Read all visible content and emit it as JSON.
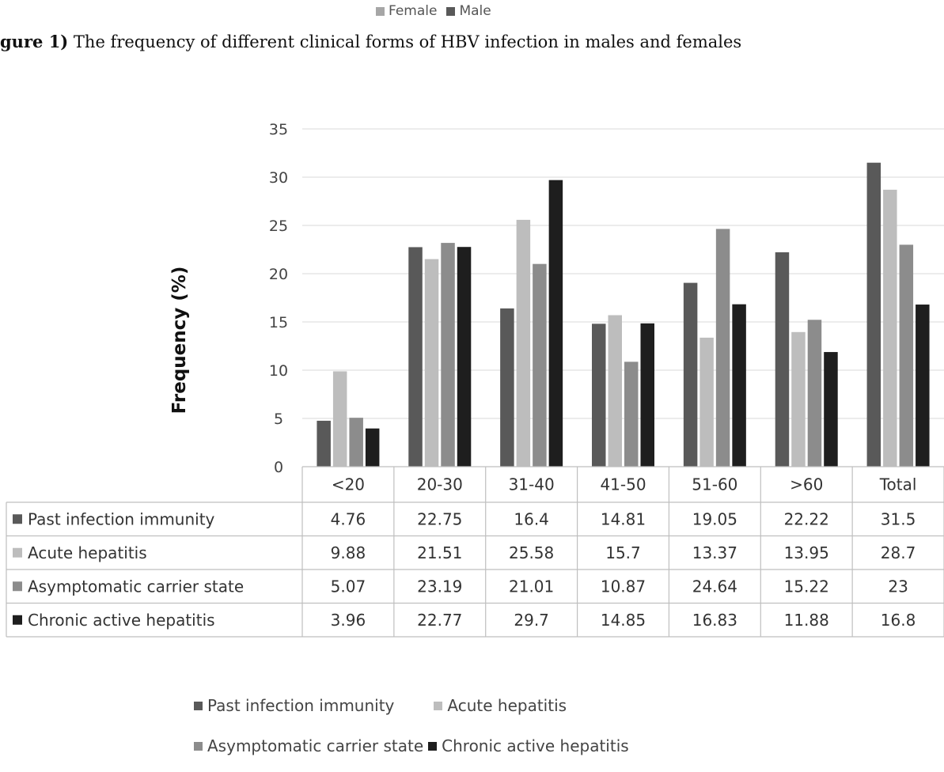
{
  "top_legend": [
    {
      "label": "Female",
      "color": "#a6a6a6"
    },
    {
      "label": "Male",
      "color": "#595959"
    }
  ],
  "caption": {
    "bold": "gure 1)",
    "text": " The frequency of different clinical forms of HBV infection in males and females"
  },
  "chart_data": {
    "type": "bar",
    "ylabel": "Frequency (%)",
    "ylim": [
      0,
      35
    ],
    "yticks": [
      0,
      5,
      10,
      15,
      20,
      25,
      30,
      35
    ],
    "grid": true,
    "categories": [
      "<20",
      "20-30",
      "31-40",
      "41-50",
      "51-60",
      ">60",
      "Total"
    ],
    "series": [
      {
        "name": "Past infection immunity",
        "color": "#595959",
        "values": [
          4.76,
          22.75,
          16.4,
          14.81,
          19.05,
          22.22,
          31.5
        ],
        "labels": [
          "4.76",
          "22.75",
          "16.4",
          "14.81",
          "19.05",
          "22.22",
          "31.5"
        ]
      },
      {
        "name": "Acute hepatitis",
        "color": "#bdbdbd",
        "values": [
          9.88,
          21.51,
          25.58,
          15.7,
          13.37,
          13.95,
          28.7
        ],
        "labels": [
          "9.88",
          "21.51",
          "25.58",
          "15.7",
          "13.37",
          "13.95",
          "28.7"
        ]
      },
      {
        "name": "Asymptomatic carrier state",
        "color": "#8c8c8c",
        "values": [
          5.07,
          23.19,
          21.01,
          10.87,
          24.64,
          15.22,
          23
        ],
        "labels": [
          "5.07",
          "23.19",
          "21.01",
          "10.87",
          "24.64",
          "15.22",
          "23"
        ]
      },
      {
        "name": "Chronic active hepatitis",
        "color": "#1e1e1e",
        "values": [
          3.96,
          22.77,
          29.7,
          14.85,
          16.83,
          11.88,
          16.8
        ],
        "labels": [
          "3.96",
          "22.77",
          "29.7",
          "14.85",
          "16.83",
          "11.88",
          "16.8"
        ]
      }
    ]
  }
}
